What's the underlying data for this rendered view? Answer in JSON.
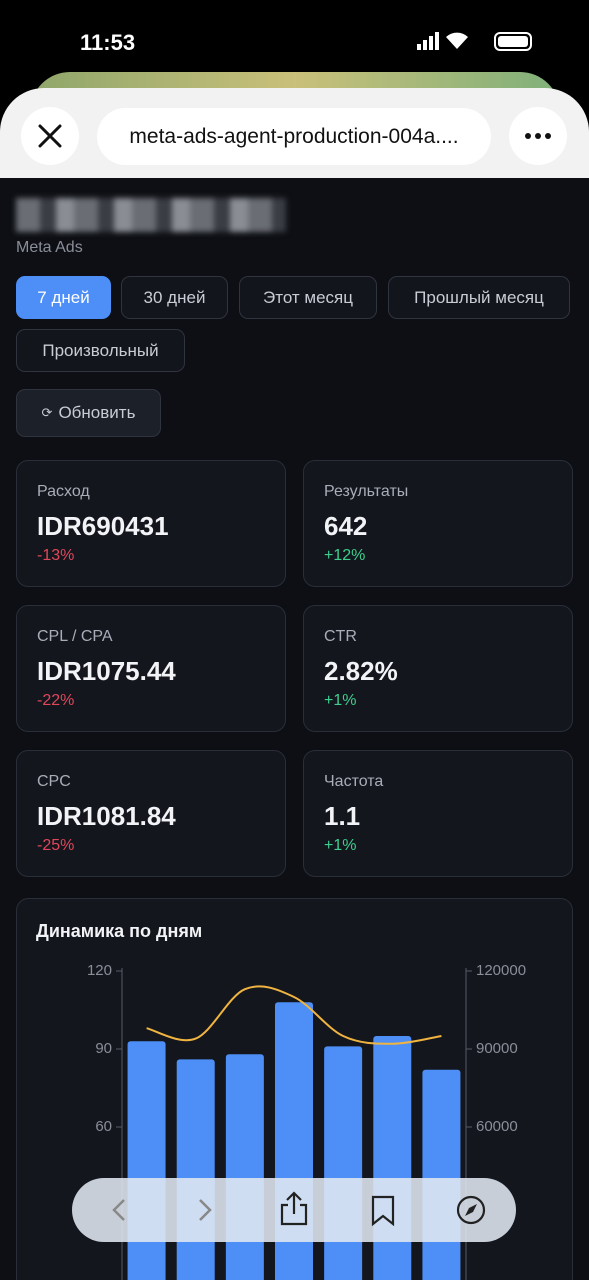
{
  "status_bar": {
    "time": "11:53"
  },
  "browser": {
    "url": "meta-ads-agent-production-004a...."
  },
  "header": {
    "subtitle": "Meta Ads"
  },
  "filters": [
    {
      "label": "7 дней",
      "selected": true
    },
    {
      "label": "30 дней",
      "selected": false
    },
    {
      "label": "Этот месяц",
      "selected": false
    },
    {
      "label": "Прошлый месяц",
      "selected": false
    },
    {
      "label": "Произвольный",
      "selected": false
    }
  ],
  "refresh": {
    "icon": "⟳",
    "label": "Обновить"
  },
  "metrics": [
    {
      "label": "Расход",
      "value": "IDR690431",
      "change": "-13%"
    },
    {
      "label": "Результаты",
      "value": "642",
      "change": "+12%"
    },
    {
      "label": "CPL / CPA",
      "value": "IDR1075.44",
      "change": "-22%"
    },
    {
      "label": "CTR",
      "value": "2.82%",
      "change": "+1%"
    },
    {
      "label": "CPC",
      "value": "IDR1081.84",
      "change": "-25%"
    },
    {
      "label": "Частота",
      "value": "1.1",
      "change": "+1%"
    }
  ],
  "chart_data": {
    "type": "bar",
    "title": "Динамика по дням",
    "categories": [
      null,
      null,
      null,
      null,
      null,
      null,
      null
    ],
    "series": [
      {
        "color": "#4d8ef7",
        "values": [
          93,
          86,
          88,
          108,
          91,
          95,
          82
        ]
      },
      {
        "type": "line",
        "axis": "y2",
        "color": "#f0b440",
        "values": [
          98000,
          94000,
          113000,
          110000,
          95000,
          92000,
          95000
        ]
      }
    ],
    "ylim": [
      0,
      120
    ],
    "yticks": [
      60,
      90,
      120
    ],
    "y2lim": [
      0,
      120000
    ],
    "y2ticks": [
      60000,
      90000,
      120000
    ]
  }
}
